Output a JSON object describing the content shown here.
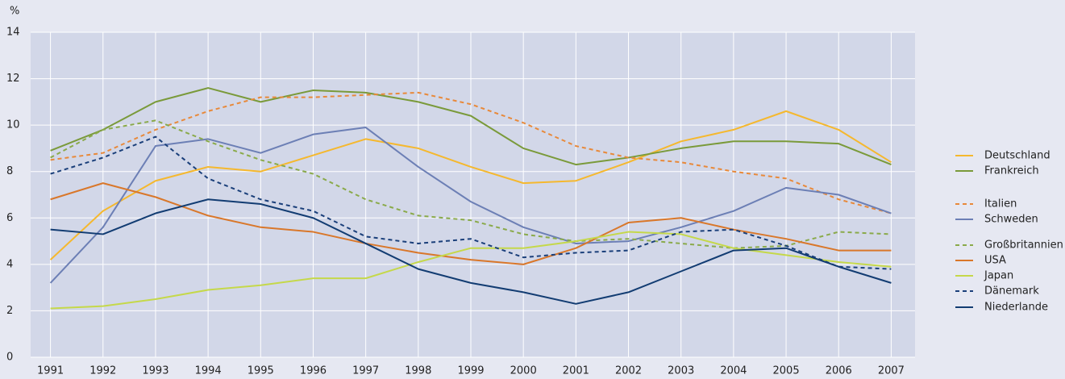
{
  "chart_data": {
    "type": "line",
    "y_unit": "%",
    "categories": [
      "1991",
      "1992",
      "1993",
      "1994",
      "1995",
      "1996",
      "1997",
      "1998",
      "1999",
      "2000",
      "2001",
      "2002",
      "2003",
      "2004",
      "2005",
      "2006",
      "2007"
    ],
    "ylim": [
      0,
      14
    ],
    "yticks": [
      0,
      2,
      4,
      6,
      8,
      10,
      12,
      14
    ],
    "grid": true,
    "legend": "right",
    "series": [
      {
        "name": "Deutschland",
        "color": "#f5b82e",
        "line_style": "solid",
        "values": [
          4.2,
          6.3,
          7.6,
          8.2,
          8.0,
          8.7,
          9.4,
          9.0,
          8.2,
          7.5,
          7.6,
          8.4,
          9.3,
          9.8,
          10.6,
          9.8,
          8.4
        ]
      },
      {
        "name": "Frankreich",
        "color": "#7a9a3a",
        "line_style": "solid",
        "values": [
          8.9,
          9.8,
          11.0,
          11.6,
          11.0,
          11.5,
          11.4,
          11.0,
          10.4,
          9.0,
          8.3,
          8.6,
          9.0,
          9.3,
          9.3,
          9.2,
          8.3
        ]
      },
      {
        "name": "Italien",
        "color": "#e8893a",
        "line_style": "dashed",
        "values": [
          8.5,
          8.8,
          9.8,
          10.6,
          11.2,
          11.2,
          11.3,
          11.4,
          10.9,
          10.1,
          9.1,
          8.6,
          8.4,
          8.0,
          7.7,
          6.8,
          6.2
        ]
      },
      {
        "name": "Schweden",
        "color": "#6c7fb5",
        "line_style": "solid",
        "values": [
          3.2,
          5.6,
          9.1,
          9.4,
          8.8,
          9.6,
          9.9,
          8.2,
          6.7,
          5.6,
          4.9,
          5.0,
          5.6,
          6.3,
          7.3,
          7.0,
          6.2
        ]
      },
      {
        "name": "Großbritannien",
        "color": "#8aaa4a",
        "line_style": "dashed",
        "values": [
          8.6,
          9.8,
          10.2,
          9.3,
          8.5,
          7.9,
          6.8,
          6.1,
          5.9,
          5.3,
          5.0,
          5.1,
          4.9,
          4.7,
          4.8,
          5.4,
          5.3
        ]
      },
      {
        "name": "USA",
        "color": "#d9772a",
        "line_style": "solid",
        "values": [
          6.8,
          7.5,
          6.9,
          6.1,
          5.6,
          5.4,
          4.9,
          4.5,
          4.2,
          4.0,
          4.7,
          5.8,
          6.0,
          5.5,
          5.1,
          4.6,
          4.6
        ]
      },
      {
        "name": "Japan",
        "color": "#c5d84a",
        "line_style": "solid",
        "values": [
          2.1,
          2.2,
          2.5,
          2.9,
          3.1,
          3.4,
          3.4,
          4.1,
          4.7,
          4.7,
          5.0,
          5.4,
          5.3,
          4.7,
          4.4,
          4.1,
          3.9
        ]
      },
      {
        "name": "Dänemark",
        "color": "#1a3f7a",
        "line_style": "dashed",
        "values": [
          7.9,
          8.6,
          9.5,
          7.7,
          6.8,
          6.3,
          5.2,
          4.9,
          5.1,
          4.3,
          4.5,
          4.6,
          5.4,
          5.5,
          4.8,
          3.9,
          3.8
        ]
      },
      {
        "name": "Niederlande",
        "color": "#123c72",
        "line_style": "solid",
        "values": [
          5.5,
          5.3,
          6.2,
          6.8,
          6.6,
          6.0,
          4.9,
          3.8,
          3.2,
          2.8,
          2.3,
          2.8,
          3.7,
          4.6,
          4.7,
          3.9,
          3.2
        ]
      }
    ]
  }
}
